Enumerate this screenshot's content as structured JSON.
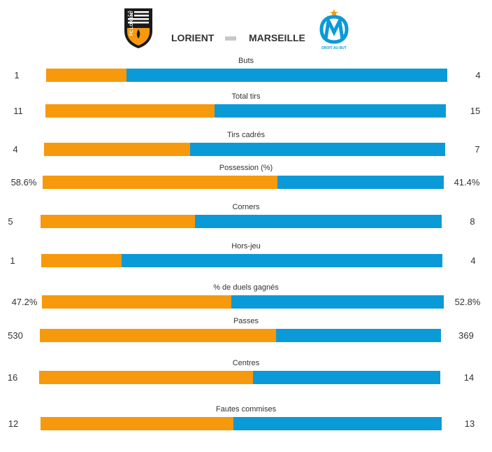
{
  "colors": {
    "home": "#f7990c",
    "away": "#0b9ad8",
    "divider": "#c8c8c8"
  },
  "header": {
    "home_team": "LORIENT",
    "away_team": "MARSEILLE",
    "home_logo_text": "FC LORIENT",
    "away_logo_text": "DROIT AU BUT"
  },
  "chart_data": {
    "type": "bar",
    "orientation": "horizontal-stacked",
    "series": [
      {
        "name": "LORIENT"
      },
      {
        "name": "MARSEILLE"
      }
    ],
    "stats": [
      {
        "label": "Buts",
        "home": 1,
        "away": 4,
        "home_display": "1",
        "away_display": "4"
      },
      {
        "label": "Total tirs",
        "home": 11,
        "away": 15,
        "home_display": "11",
        "away_display": "15"
      },
      {
        "label": "Tirs cadrés",
        "home": 4,
        "away": 7,
        "home_display": "4",
        "away_display": "7"
      },
      {
        "label": "Possession (%)",
        "home": 58.6,
        "away": 41.4,
        "home_display": "58.6%",
        "away_display": "41.4%"
      },
      {
        "label": "Corners",
        "home": 5,
        "away": 8,
        "home_display": "5",
        "away_display": "8"
      },
      {
        "label": "Hors-jeu",
        "home": 1,
        "away": 4,
        "home_display": "1",
        "away_display": "4"
      },
      {
        "label": "% de duels gagnés",
        "home": 47.2,
        "away": 52.8,
        "home_display": "47.2%",
        "away_display": "52.8%"
      },
      {
        "label": "Passes",
        "home": 530,
        "away": 369,
        "home_display": "530",
        "away_display": "369"
      },
      {
        "label": "Centres",
        "home": 16,
        "away": 14,
        "home_display": "16",
        "away_display": "14"
      },
      {
        "label": "Fautes commises",
        "home": 12,
        "away": 13,
        "home_display": "12",
        "away_display": "13"
      }
    ]
  }
}
